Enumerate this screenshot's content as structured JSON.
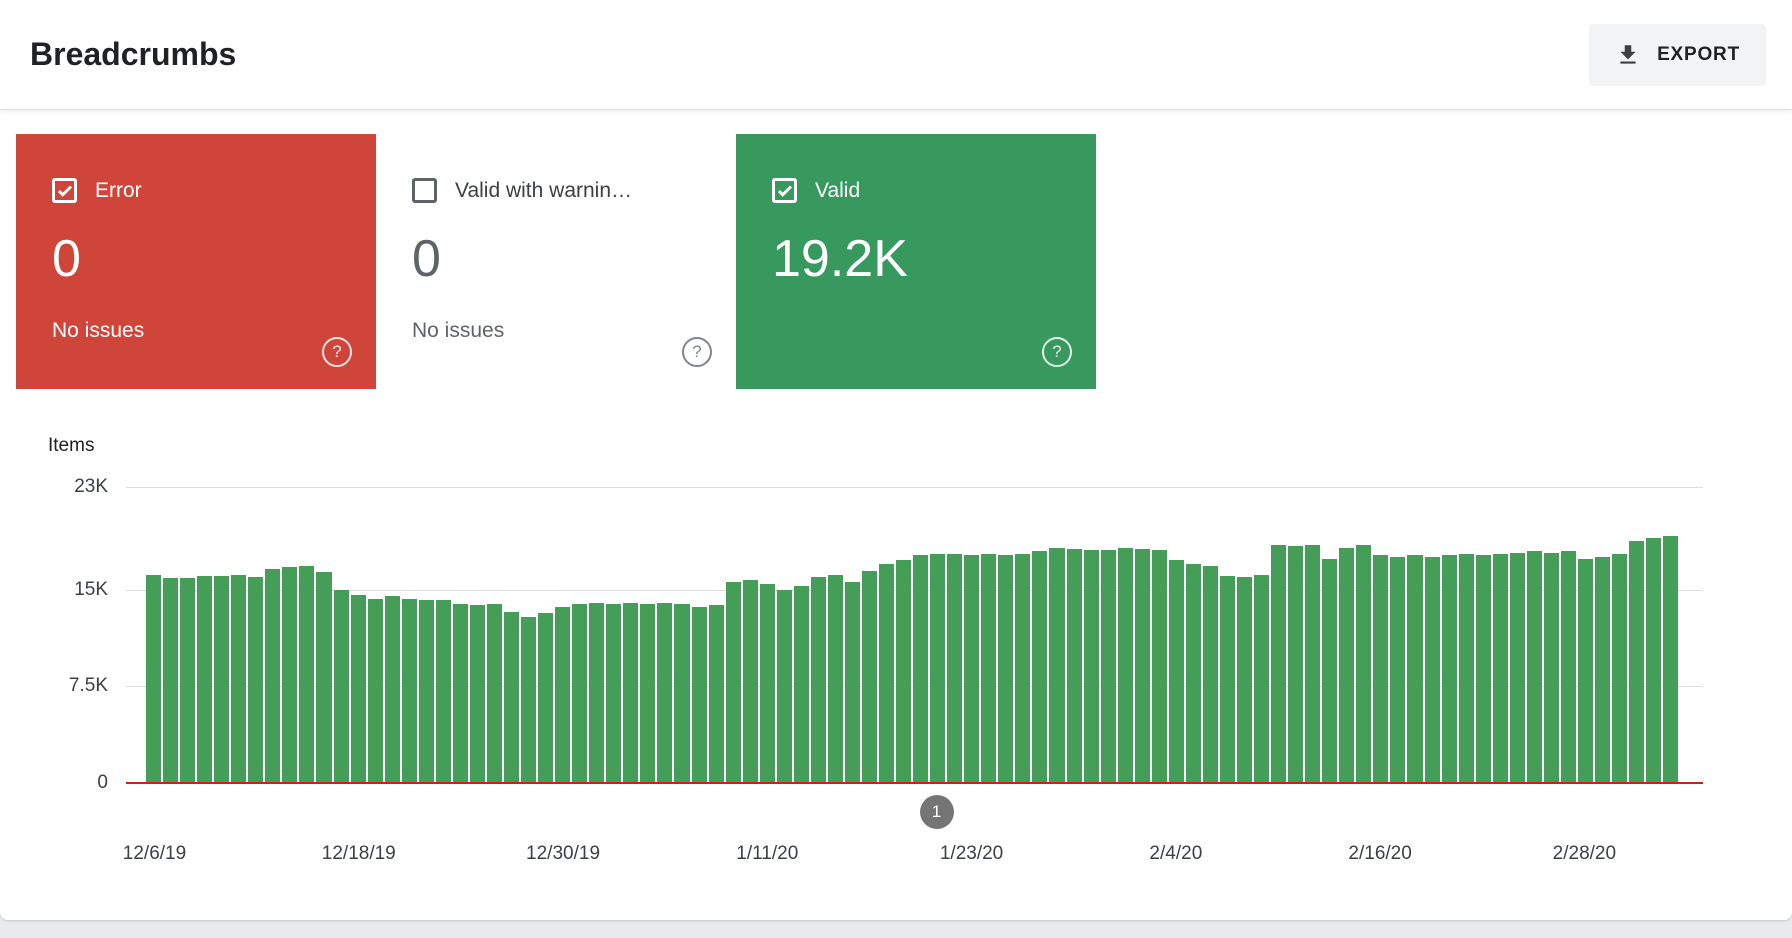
{
  "header": {
    "title": "Breadcrumbs",
    "export_label": "EXPORT"
  },
  "cards": [
    {
      "id": "error",
      "label": "Error",
      "value": "0",
      "sub": "No issues",
      "checked": true,
      "theme": "dark",
      "bg": "#d0453a"
    },
    {
      "id": "warning",
      "label": "Valid with warnin…",
      "value": "0",
      "sub": "No issues",
      "checked": false,
      "theme": "light",
      "bg": "#ffffff"
    },
    {
      "id": "valid",
      "label": "Valid",
      "value": "19.2K",
      "sub": "",
      "checked": true,
      "theme": "dark",
      "bg": "#38995f"
    }
  ],
  "chart_data": {
    "type": "bar",
    "title": "Items",
    "ylim": [
      0,
      23000
    ],
    "yticks": [
      {
        "label": "0",
        "value": 0
      },
      {
        "label": "7.5K",
        "value": 7500
      },
      {
        "label": "15K",
        "value": 15000
      },
      {
        "label": "23K",
        "value": 23000
      }
    ],
    "x_tick_labels": [
      {
        "label": "12/6/19",
        "index": 0
      },
      {
        "label": "12/18/19",
        "index": 12
      },
      {
        "label": "12/30/19",
        "index": 24
      },
      {
        "label": "1/11/20",
        "index": 36
      },
      {
        "label": "1/23/20",
        "index": 48
      },
      {
        "label": "2/4/20",
        "index": 60
      },
      {
        "label": "2/16/20",
        "index": 72
      },
      {
        "label": "2/28/20",
        "index": 84
      }
    ],
    "values": [
      16200,
      15900,
      15900,
      16100,
      16100,
      16200,
      16000,
      16600,
      16800,
      16900,
      16400,
      15000,
      14600,
      14300,
      14500,
      14300,
      14200,
      14200,
      13900,
      13800,
      13900,
      13300,
      12900,
      13200,
      13700,
      13900,
      14000,
      13900,
      14000,
      13900,
      14000,
      13900,
      13700,
      13800,
      15600,
      15800,
      15500,
      15000,
      15300,
      16000,
      16200,
      15600,
      16500,
      17000,
      17300,
      17700,
      17800,
      17800,
      17700,
      17800,
      17700,
      17800,
      18000,
      18300,
      18200,
      18100,
      18100,
      18300,
      18200,
      18100,
      17300,
      17000,
      16900,
      16100,
      16000,
      16200,
      18500,
      18400,
      18500,
      17400,
      18300,
      18500,
      17700,
      17600,
      17700,
      17600,
      17700,
      17800,
      17700,
      17800,
      17900,
      18000,
      17900,
      18000,
      17400,
      17600,
      17800,
      18800,
      19000,
      19200
    ],
    "bar_color": "#459e58",
    "grid_color": "#dadce0",
    "error_series": {
      "name": "Error",
      "value": 0,
      "color": "#c5221f"
    },
    "marker": {
      "label": "1",
      "position": 0.516
    },
    "series_name": "Valid",
    "legend_position": "none",
    "grid": true
  }
}
